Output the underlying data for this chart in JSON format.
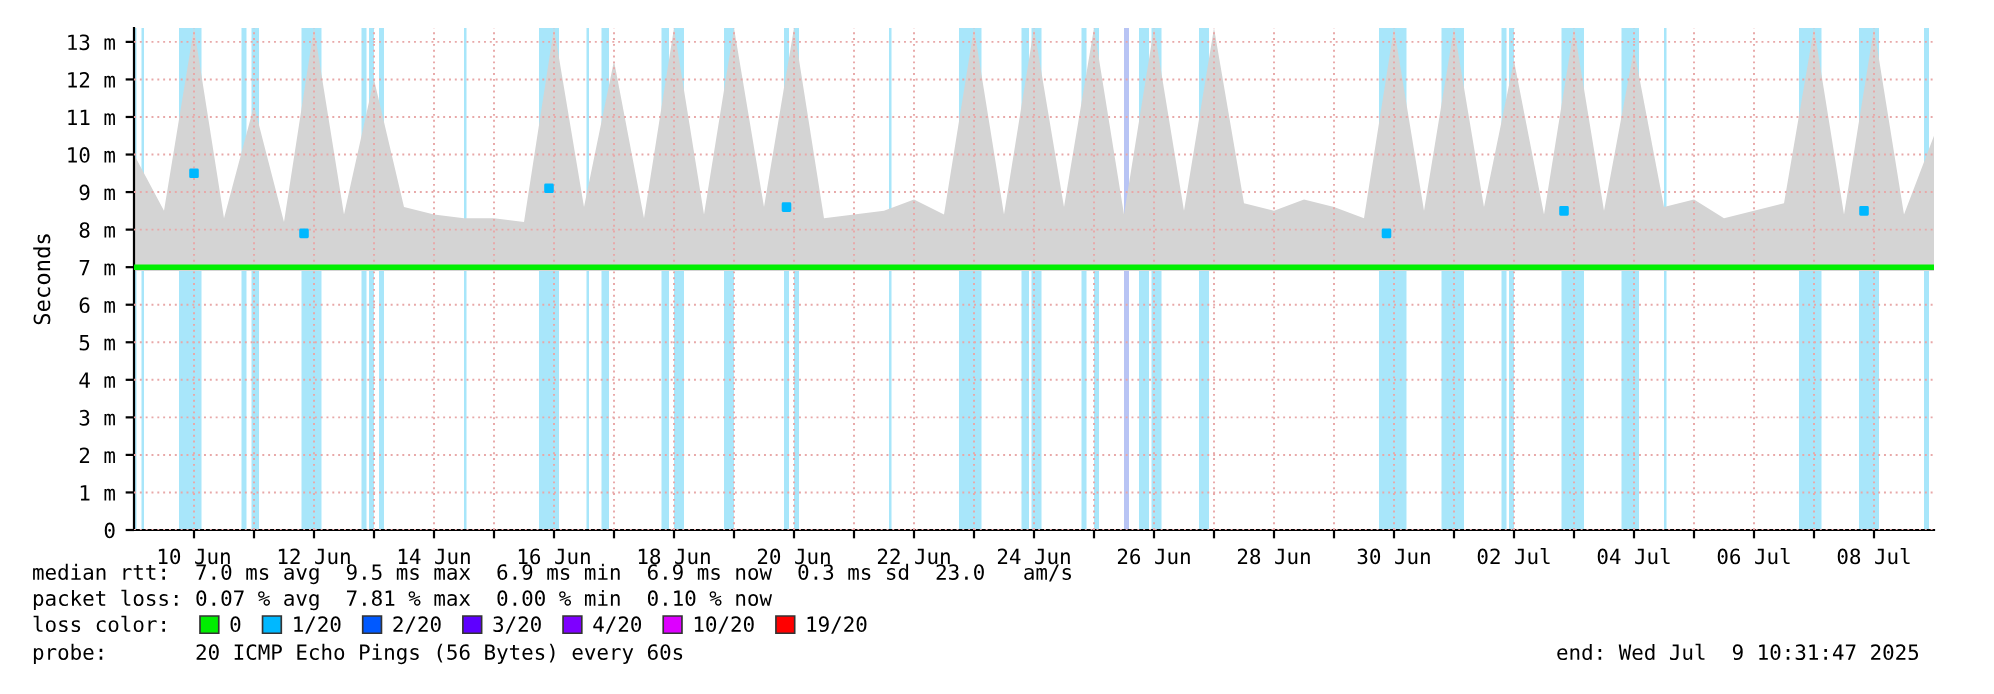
{
  "chart_data": {
    "type": "line",
    "ylabel": "Seconds",
    "xlim": [
      "2025-06-09T00:00",
      "2025-07-09T00:00"
    ],
    "xticks": [
      {
        "value": "2025-06-10",
        "label": "10 Jun"
      },
      {
        "value": "2025-06-11",
        "label": null
      },
      {
        "value": "2025-06-12",
        "label": "12 Jun"
      },
      {
        "value": "2025-06-13",
        "label": null
      },
      {
        "value": "2025-06-14",
        "label": "14 Jun"
      },
      {
        "value": "2025-06-15",
        "label": null
      },
      {
        "value": "2025-06-16",
        "label": "16 Jun"
      },
      {
        "value": "2025-06-17",
        "label": null
      },
      {
        "value": "2025-06-18",
        "label": "18 Jun"
      },
      {
        "value": "2025-06-19",
        "label": null
      },
      {
        "value": "2025-06-20",
        "label": "20 Jun"
      },
      {
        "value": "2025-06-21",
        "label": null
      },
      {
        "value": "2025-06-22",
        "label": "22 Jun"
      },
      {
        "value": "2025-06-23",
        "label": null
      },
      {
        "value": "2025-06-24",
        "label": "24 Jun"
      },
      {
        "value": "2025-06-25",
        "label": null
      },
      {
        "value": "2025-06-26",
        "label": "26 Jun"
      },
      {
        "value": "2025-06-27",
        "label": null
      },
      {
        "value": "2025-06-28",
        "label": "28 Jun"
      },
      {
        "value": "2025-06-29",
        "label": null
      },
      {
        "value": "2025-06-30",
        "label": "30 Jun"
      },
      {
        "value": "2025-07-01",
        "label": null
      },
      {
        "value": "2025-07-02",
        "label": "02 Jul"
      },
      {
        "value": "2025-07-03",
        "label": null
      },
      {
        "value": "2025-07-04",
        "label": "04 Jul"
      },
      {
        "value": "2025-07-05",
        "label": null
      },
      {
        "value": "2025-07-06",
        "label": "06 Jul"
      },
      {
        "value": "2025-07-07",
        "label": null
      },
      {
        "value": "2025-07-08",
        "label": "08 Jul"
      }
    ],
    "ylim": [
      0,
      13.37
    ],
    "yticks": [
      0,
      {
        "value": 1,
        "label": "1 m"
      },
      {
        "value": 2,
        "label": "2 m"
      },
      {
        "value": 3,
        "label": "3 m"
      },
      {
        "value": 4,
        "label": "4 m"
      },
      {
        "value": 5,
        "label": "5 m"
      },
      {
        "value": 6,
        "label": "6 m"
      },
      {
        "value": 7,
        "label": "7 m"
      },
      {
        "value": 8,
        "label": "8 m"
      },
      {
        "value": 9,
        "label": "9 m"
      },
      {
        "value": 10,
        "label": "10 m"
      },
      {
        "value": 11,
        "label": "11 m"
      },
      {
        "value": 12,
        "label": "12 m"
      },
      {
        "value": 13,
        "label": "13 m"
      }
    ],
    "grid": true,
    "legend": "bottom left",
    "series": [
      {
        "name": "0",
        "color": "#00ee00",
        "x": [
          "2025-06-09T00:00",
          "2025-06-09T12:00",
          "2025-06-10T00:00",
          "2025-06-10T12:00",
          "2025-06-11T00:00",
          "2025-06-11T12:00",
          "2025-06-12T00:00",
          "2025-06-12T12:00",
          "2025-06-13T00:00",
          "2025-06-13T12:00",
          "2025-06-14T00:00",
          "2025-06-14T12:00",
          "2025-06-15T00:00",
          "2025-06-15T12:00",
          "2025-06-16T00:00",
          "2025-06-16T12:00",
          "2025-06-17T00:00",
          "2025-06-17T12:00",
          "2025-06-18T00:00",
          "2025-06-18T12:00",
          "2025-06-19T00:00",
          "2025-06-19T12:00",
          "2025-06-20T00:00",
          "2025-06-20T12:00",
          "2025-06-21T00:00",
          "2025-06-21T12:00",
          "2025-06-22T00:00",
          "2025-06-22T12:00",
          "2025-06-23T00:00",
          "2025-06-23T12:00",
          "2025-06-24T00:00",
          "2025-06-24T12:00",
          "2025-06-25T00:00",
          "2025-06-25T12:00",
          "2025-06-26T00:00",
          "2025-06-26T12:00",
          "2025-06-27T00:00",
          "2025-06-27T12:00",
          "2025-06-28T00:00",
          "2025-06-28T12:00",
          "2025-06-29T00:00",
          "2025-06-29T12:00",
          "2025-06-30T00:00",
          "2025-06-30T12:00",
          "2025-07-01T00:00",
          "2025-07-01T12:00",
          "2025-07-02T00:00",
          "2025-07-02T12:00",
          "2025-07-03T00:00",
          "2025-07-03T12:00",
          "2025-07-04T00:00",
          "2025-07-04T12:00",
          "2025-07-05T00:00",
          "2025-07-05T12:00",
          "2025-07-06T00:00",
          "2025-07-06T12:00",
          "2025-07-07T00:00",
          "2025-07-07T12:00",
          "2025-07-08T00:00",
          "2025-07-08T12:00",
          "2025-07-09T00:00"
        ],
        "values": [
          7.0,
          7.0,
          7.0,
          7.0,
          7.0,
          7.0,
          7.0,
          7.0,
          7.0,
          7.0,
          7.0,
          7.0,
          7.0,
          7.0,
          7.0,
          7.0,
          7.0,
          7.0,
          7.0,
          7.0,
          7.0,
          7.0,
          7.0,
          7.0,
          7.0,
          7.0,
          7.0,
          7.0,
          7.0,
          7.0,
          7.0,
          7.0,
          7.0,
          7.0,
          7.0,
          7.0,
          7.0,
          7.0,
          7.0,
          7.0,
          7.0,
          7.0,
          7.0,
          7.0,
          7.0,
          7.0,
          7.0,
          7.0,
          7.0,
          7.0,
          7.0,
          7.0,
          7.0,
          7.0,
          7.0,
          7.0,
          7.0,
          7.0,
          7.0,
          7.0,
          7.0
        ],
        "lower": [
          6.9,
          6.9,
          6.9,
          6.9,
          6.9,
          6.9,
          6.9,
          6.9,
          6.9,
          6.9,
          6.9,
          6.9,
          6.9,
          6.9,
          6.9,
          6.9,
          6.9,
          6.9,
          6.9,
          6.9,
          6.9,
          6.9,
          6.9,
          6.9,
          6.9,
          6.9,
          6.9,
          6.9,
          6.9,
          6.9,
          6.9,
          6.9,
          6.9,
          6.9,
          6.9,
          6.9,
          6.9,
          6.9,
          6.9,
          6.9,
          6.9,
          6.9,
          6.9,
          6.9,
          6.9,
          6.9,
          6.9,
          6.9,
          6.9,
          6.9,
          6.9,
          6.9,
          6.9,
          6.9,
          6.9,
          6.9,
          6.9,
          6.9,
          6.9,
          6.9,
          6.9
        ],
        "upper": [
          10.0,
          8.5,
          13.37,
          8.3,
          11.3,
          8.2,
          13.37,
          8.4,
          12.0,
          8.6,
          8.4,
          8.3,
          8.3,
          8.2,
          13.37,
          8.6,
          12.5,
          8.3,
          13.37,
          8.4,
          13.37,
          8.6,
          13.37,
          8.3,
          8.4,
          8.5,
          8.8,
          8.4,
          13.37,
          8.4,
          13.37,
          8.6,
          13.37,
          8.4,
          13.37,
          8.5,
          13.37,
          8.7,
          8.5,
          8.8,
          8.6,
          8.3,
          13.37,
          8.5,
          13.37,
          8.6,
          12.5,
          8.4,
          13.37,
          8.5,
          12.8,
          8.6,
          8.8,
          8.3,
          8.5,
          8.7,
          13.37,
          8.4,
          13.37,
          8.4,
          10.5
        ]
      },
      {
        "name": "1/20",
        "color": "#00b8ff",
        "type": "scatter",
        "x": [
          "2025-06-10T00:00",
          "2025-06-11T20:00",
          "2025-06-15T22:00",
          "2025-06-19T21:00",
          "2025-06-29T21:00",
          "2025-07-02T20:00",
          "2025-07-07T20:00"
        ],
        "values": [
          9.5,
          7.9,
          9.1,
          8.6,
          7.9,
          8.5,
          8.5
        ]
      },
      {
        "name": "2/20",
        "color": "#0059ff",
        "type": "scatter"
      },
      {
        "name": "3/20",
        "color": "#5e00ff",
        "type": "scatter"
      },
      {
        "name": "4/20",
        "color": "#7e00ff",
        "type": "scatter"
      },
      {
        "name": "10/20",
        "color": "#dd00ff",
        "type": "scatter"
      },
      {
        "name": "19/20",
        "color": "#ff0000",
        "type": "scatter"
      }
    ],
    "bands": [
      {
        "axis": "x",
        "from": "2025-06-09T00:00",
        "to": "2025-06-09T01:00",
        "color": "#a8e6fa"
      },
      {
        "axis": "x",
        "from": "2025-06-09T03:00",
        "to": "2025-06-09T04:00",
        "color": "#a8e6fa"
      },
      {
        "axis": "x",
        "from": "2025-06-09T18:00",
        "to": "2025-06-10T03:00",
        "color": "#a8e6fa"
      },
      {
        "axis": "x",
        "from": "2025-06-10T19:00",
        "to": "2025-06-10T21:00",
        "color": "#a8e6fa"
      },
      {
        "axis": "x",
        "from": "2025-06-10T23:00",
        "to": "2025-06-11T02:00",
        "color": "#a8e6fa"
      },
      {
        "axis": "x",
        "from": "2025-06-11T19:00",
        "to": "2025-06-12T03:00",
        "color": "#a8e6fa"
      },
      {
        "axis": "x",
        "from": "2025-06-12T19:00",
        "to": "2025-06-12T21:00",
        "color": "#a8e6fa"
      },
      {
        "axis": "x",
        "from": "2025-06-12T22:00",
        "to": "2025-06-13T00:00",
        "color": "#a8e6fa"
      },
      {
        "axis": "x",
        "from": "2025-06-13T02:00",
        "to": "2025-06-13T04:00",
        "color": "#a8e6fa"
      },
      {
        "axis": "x",
        "from": "2025-06-14T12:00",
        "to": "2025-06-14T13:00",
        "color": "#a8e6fa"
      },
      {
        "axis": "x",
        "from": "2025-06-15T18:00",
        "to": "2025-06-16T02:00",
        "color": "#a8e6fa"
      },
      {
        "axis": "x",
        "from": "2025-06-16T13:00",
        "to": "2025-06-16T14:00",
        "color": "#a8e6fa"
      },
      {
        "axis": "x",
        "from": "2025-06-16T19:00",
        "to": "2025-06-16T22:00",
        "color": "#a8e6fa"
      },
      {
        "axis": "x",
        "from": "2025-06-17T19:00",
        "to": "2025-06-17T22:00",
        "color": "#a8e6fa"
      },
      {
        "axis": "x",
        "from": "2025-06-18T00:00",
        "to": "2025-06-18T04:00",
        "color": "#a8e6fa"
      },
      {
        "axis": "x",
        "from": "2025-06-18T20:00",
        "to": "2025-06-19T00:00",
        "color": "#a8e6fa"
      },
      {
        "axis": "x",
        "from": "2025-06-19T20:00",
        "to": "2025-06-19T22:00",
        "color": "#a8e6fa"
      },
      {
        "axis": "x",
        "from": "2025-06-20T00:00",
        "to": "2025-06-20T02:00",
        "color": "#a8e6fa"
      },
      {
        "axis": "x",
        "from": "2025-06-21T14:00",
        "to": "2025-06-21T15:00",
        "color": "#a8e6fa"
      },
      {
        "axis": "x",
        "from": "2025-06-22T18:00",
        "to": "2025-06-23T03:00",
        "color": "#a8e6fa"
      },
      {
        "axis": "x",
        "from": "2025-06-23T19:00",
        "to": "2025-06-23T22:00",
        "color": "#a8e6fa"
      },
      {
        "axis": "x",
        "from": "2025-06-23T23:00",
        "to": "2025-06-24T03:00",
        "color": "#a8e6fa"
      },
      {
        "axis": "x",
        "from": "2025-06-24T19:00",
        "to": "2025-06-24T21:00",
        "color": "#a8e6fa"
      },
      {
        "axis": "x",
        "from": "2025-06-25T00:00",
        "to": "2025-06-25T02:00",
        "color": "#a8e6fa"
      },
      {
        "axis": "x",
        "from": "2025-06-25T12:00",
        "to": "2025-06-25T14:00",
        "color": "#b8c4f4"
      },
      {
        "axis": "x",
        "from": "2025-06-25T18:00",
        "to": "2025-06-25T22:00",
        "color": "#a8e6fa"
      },
      {
        "axis": "x",
        "from": "2025-06-25T23:00",
        "to": "2025-06-26T03:00",
        "color": "#a8e6fa"
      },
      {
        "axis": "x",
        "from": "2025-06-26T18:00",
        "to": "2025-06-26T22:00",
        "color": "#a8e6fa"
      },
      {
        "axis": "x",
        "from": "2025-06-29T18:00",
        "to": "2025-06-30T05:00",
        "color": "#a8e6fa"
      },
      {
        "axis": "x",
        "from": "2025-06-30T19:00",
        "to": "2025-07-01T04:00",
        "color": "#a8e6fa"
      },
      {
        "axis": "x",
        "from": "2025-07-01T19:00",
        "to": "2025-07-01T21:00",
        "color": "#a8e6fa"
      },
      {
        "axis": "x",
        "from": "2025-07-01T22:00",
        "to": "2025-07-02T00:00",
        "color": "#a8e6fa"
      },
      {
        "axis": "x",
        "from": "2025-07-02T19:00",
        "to": "2025-07-03T04:00",
        "color": "#a8e6fa"
      },
      {
        "axis": "x",
        "from": "2025-07-03T19:00",
        "to": "2025-07-04T02:00",
        "color": "#a8e6fa"
      },
      {
        "axis": "x",
        "from": "2025-07-04T12:00",
        "to": "2025-07-04T13:00",
        "color": "#a8e6fa"
      },
      {
        "axis": "x",
        "from": "2025-07-06T18:00",
        "to": "2025-07-07T03:00",
        "color": "#a8e6fa"
      },
      {
        "axis": "x",
        "from": "2025-07-07T18:00",
        "to": "2025-07-08T02:00",
        "color": "#a8e6fa"
      },
      {
        "axis": "x",
        "from": "2025-07-08T20:00",
        "to": "2025-07-08T22:00",
        "color": "#a8e6fa"
      }
    ],
    "annotations": [
      "median rtt:  7.0 ms avg  9.5 ms max  6.9 ms min  6.9 ms now  0.3 ms sd  23.0   am/s",
      "packet loss: 0.07 % avg  7.81 % max  0.00 % min  0.10 % now",
      "loss color:",
      "probe:       20 ICMP Echo Pings (56 Bytes) every 60s",
      "end: Wed Jul  9 10:31:47 2025"
    ]
  }
}
